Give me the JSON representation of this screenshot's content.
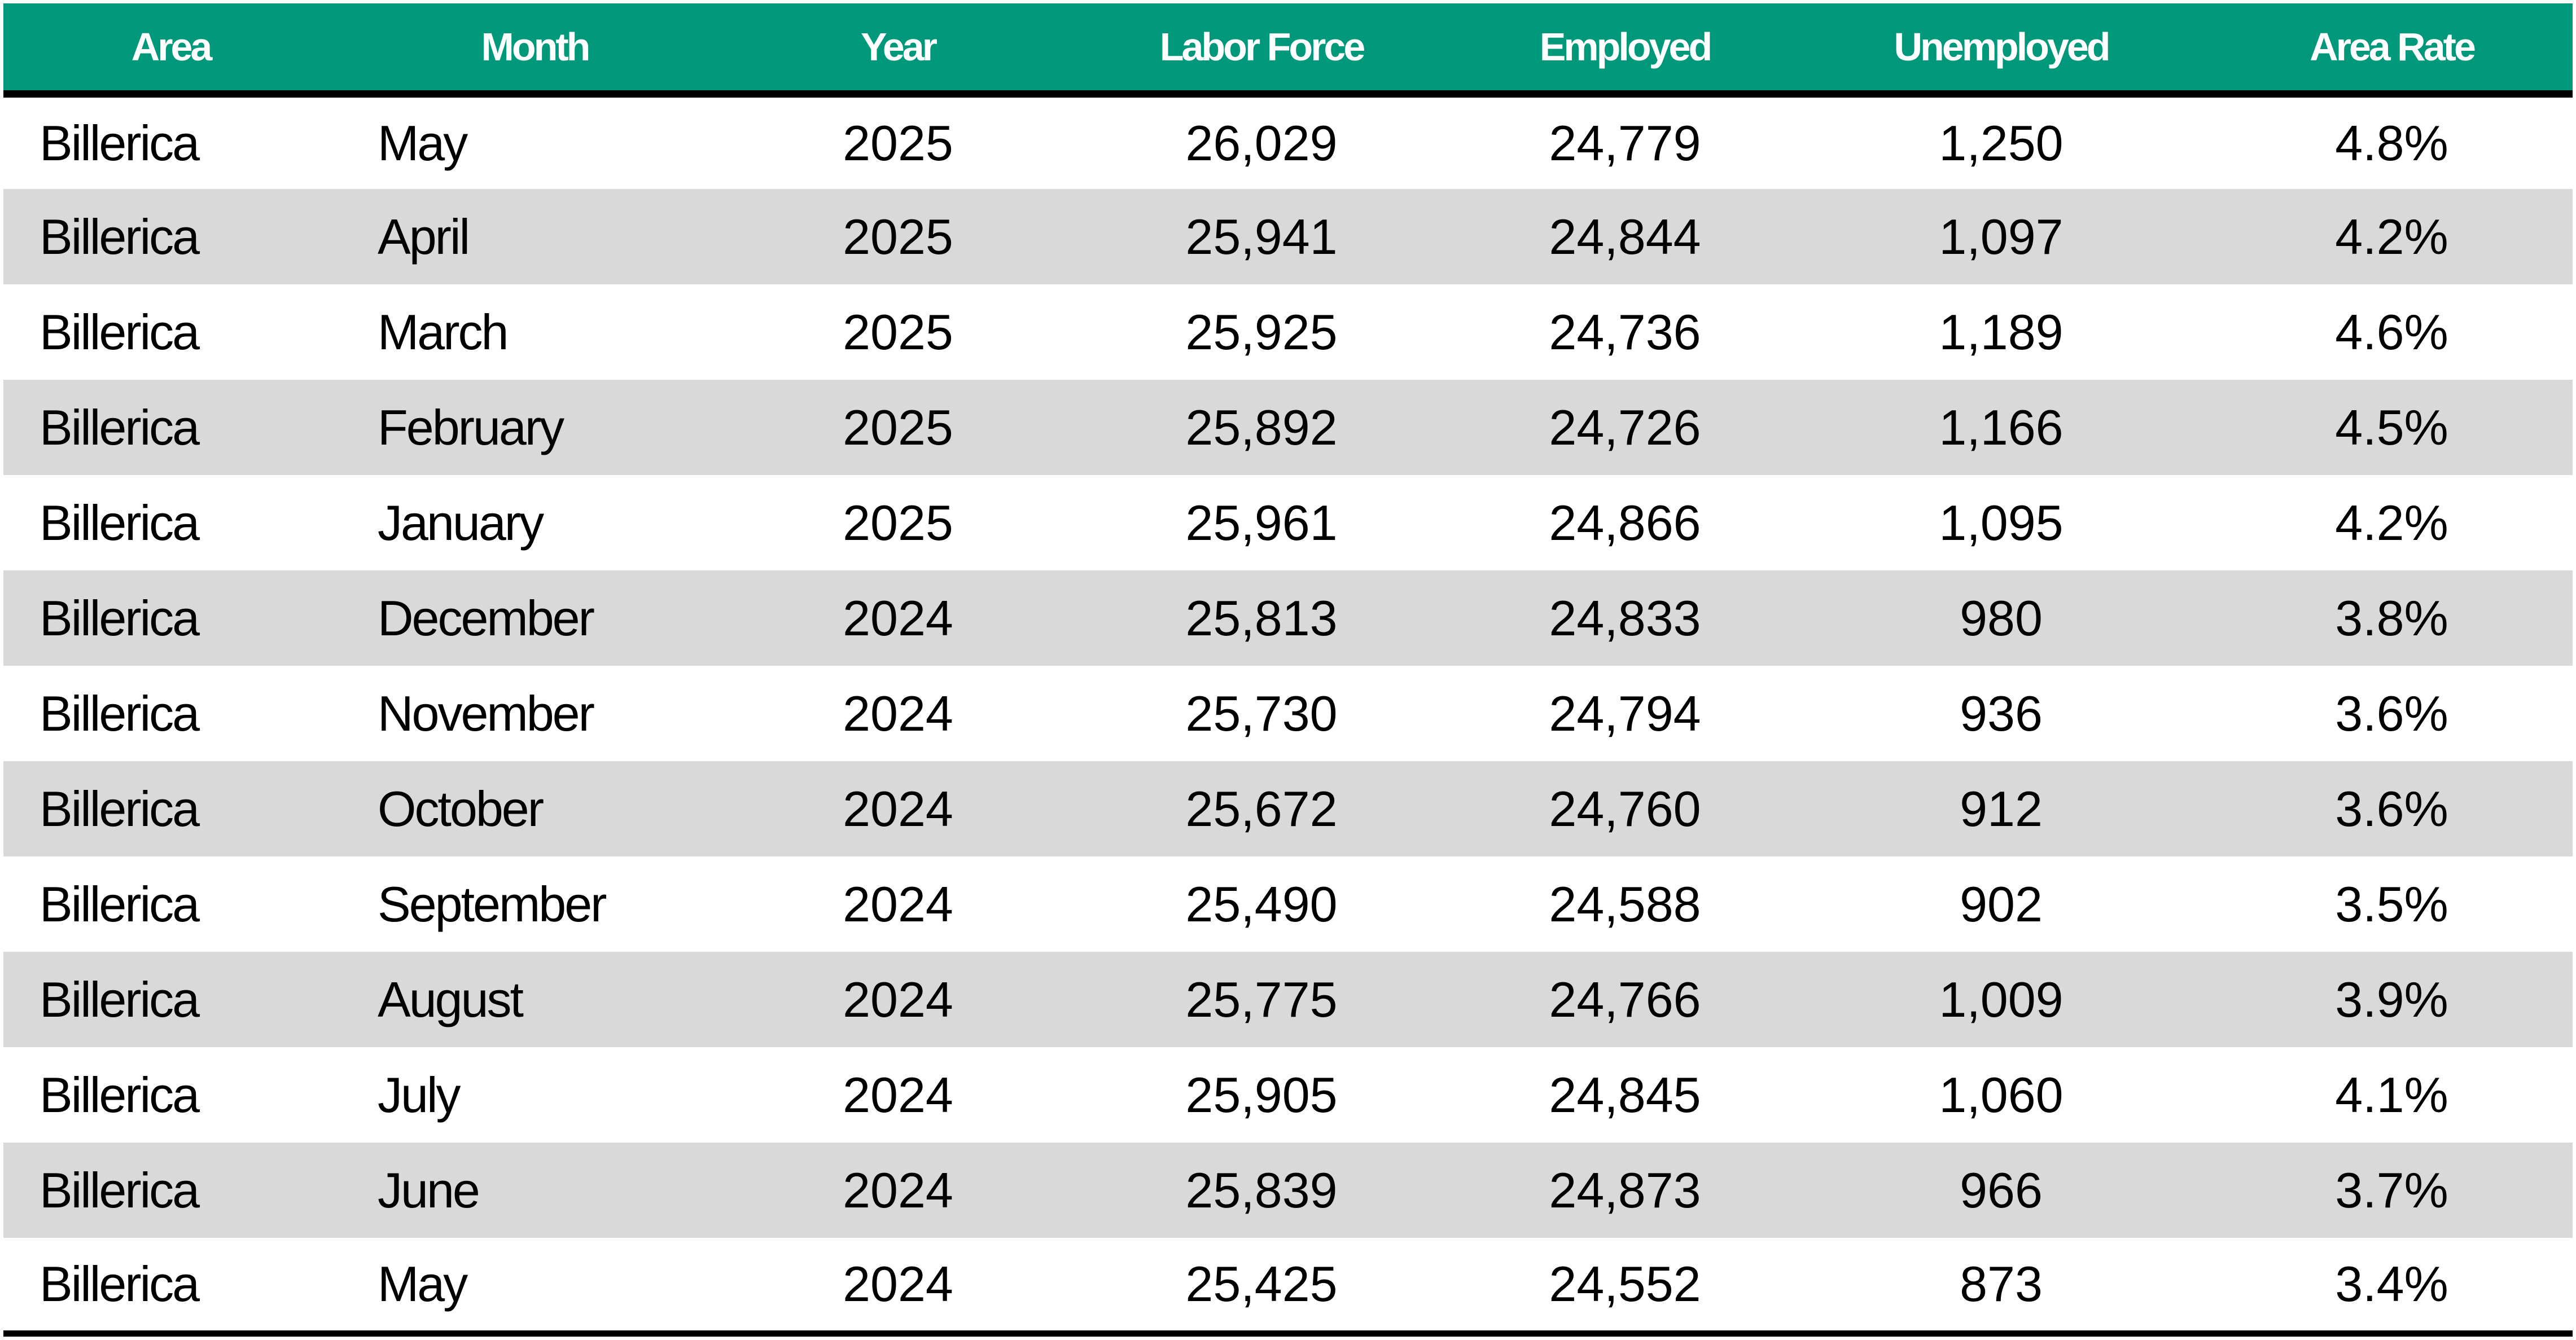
{
  "table": {
    "headers": [
      "Area",
      "Month",
      "Year",
      "Labor Force",
      "Employed",
      "Unemployed",
      "Area Rate"
    ],
    "rows": [
      [
        "Billerica",
        "May",
        "2025",
        "26,029",
        "24,779",
        "1,250",
        "4.8%"
      ],
      [
        "Billerica",
        "April",
        "2025",
        "25,941",
        "24,844",
        "1,097",
        "4.2%"
      ],
      [
        "Billerica",
        "March",
        "2025",
        "25,925",
        "24,736",
        "1,189",
        "4.6%"
      ],
      [
        "Billerica",
        "February",
        "2025",
        "25,892",
        "24,726",
        "1,166",
        "4.5%"
      ],
      [
        "Billerica",
        "January",
        "2025",
        "25,961",
        "24,866",
        "1,095",
        "4.2%"
      ],
      [
        "Billerica",
        "December",
        "2024",
        "25,813",
        "24,833",
        "980",
        "3.8%"
      ],
      [
        "Billerica",
        "November",
        "2024",
        "25,730",
        "24,794",
        "936",
        "3.6%"
      ],
      [
        "Billerica",
        "October",
        "2024",
        "25,672",
        "24,760",
        "912",
        "3.6%"
      ],
      [
        "Billerica",
        "September",
        "2024",
        "25,490",
        "24,588",
        "902",
        "3.5%"
      ],
      [
        "Billerica",
        "August",
        "2024",
        "25,775",
        "24,766",
        "1,009",
        "3.9%"
      ],
      [
        "Billerica",
        "July",
        "2024",
        "25,905",
        "24,845",
        "1,060",
        "4.1%"
      ],
      [
        "Billerica",
        "June",
        "2024",
        "25,839",
        "24,873",
        "966",
        "3.7%"
      ],
      [
        "Billerica",
        "May",
        "2024",
        "25,425",
        "24,552",
        "873",
        "3.4%"
      ]
    ]
  },
  "colors": {
    "header_background": "#00987a",
    "header_text": "#ffffff",
    "stripe_background": "#d9d9d9",
    "rule": "#000000"
  }
}
